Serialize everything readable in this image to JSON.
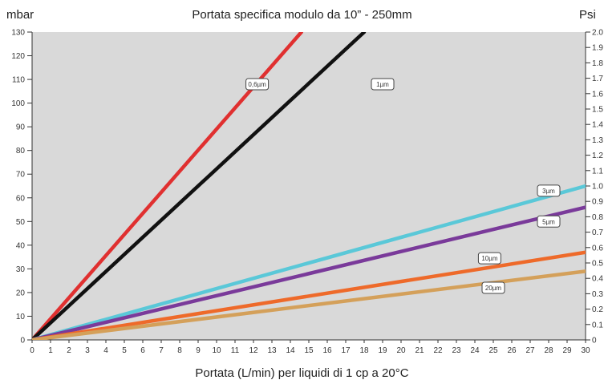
{
  "chart_data": {
    "type": "line",
    "title": "Portata specifica modulo da 10” - 250mm",
    "xlabel": "Portata (L/min) per liquidi di 1 cp a 20°C",
    "ylabel": "mbar",
    "y2label": "Psi",
    "xlim": [
      0,
      30
    ],
    "ylim": [
      0,
      130
    ],
    "y2lim": [
      0,
      2.0
    ],
    "grid": false,
    "background_color": "#d9d9d9",
    "x_ticks": [
      0,
      1,
      2,
      3,
      4,
      5,
      6,
      7,
      8,
      9,
      10,
      11,
      12,
      13,
      14,
      15,
      16,
      17,
      18,
      19,
      20,
      21,
      22,
      23,
      24,
      25,
      26,
      27,
      28,
      29,
      30
    ],
    "y_ticks": [
      0,
      10,
      20,
      30,
      40,
      50,
      60,
      70,
      80,
      90,
      100,
      110,
      120,
      130
    ],
    "y2_ticks": [
      "0",
      "0.1",
      "0.2",
      "0.3",
      "0.4",
      "0.5",
      "0.6",
      "0.7",
      "0.8",
      "0.9",
      "1.0",
      "1.1",
      "1.2",
      "1.3",
      "1.4",
      "1.5",
      "1.6",
      "1.7",
      "1.8",
      "1.9",
      "2.0"
    ],
    "series": [
      {
        "name": "0,6µm",
        "color": "#e03030",
        "x": [
          0,
          14.6
        ],
        "y": [
          0,
          130
        ]
      },
      {
        "name": "1µm",
        "color": "#111111",
        "x": [
          0,
          18
        ],
        "y": [
          0,
          130
        ]
      },
      {
        "name": "3µm",
        "color": "#5ac8d8",
        "x": [
          0,
          30
        ],
        "y": [
          0,
          65
        ]
      },
      {
        "name": "5µm",
        "color": "#7a3a9a",
        "x": [
          0,
          30
        ],
        "y": [
          0,
          56
        ]
      },
      {
        "name": "10µm",
        "color": "#ee6a2a",
        "x": [
          0,
          30
        ],
        "y": [
          0,
          37
        ]
      },
      {
        "name": "20µm",
        "color": "#d4a05a",
        "x": [
          0,
          30
        ],
        "y": [
          0,
          29
        ]
      }
    ]
  }
}
